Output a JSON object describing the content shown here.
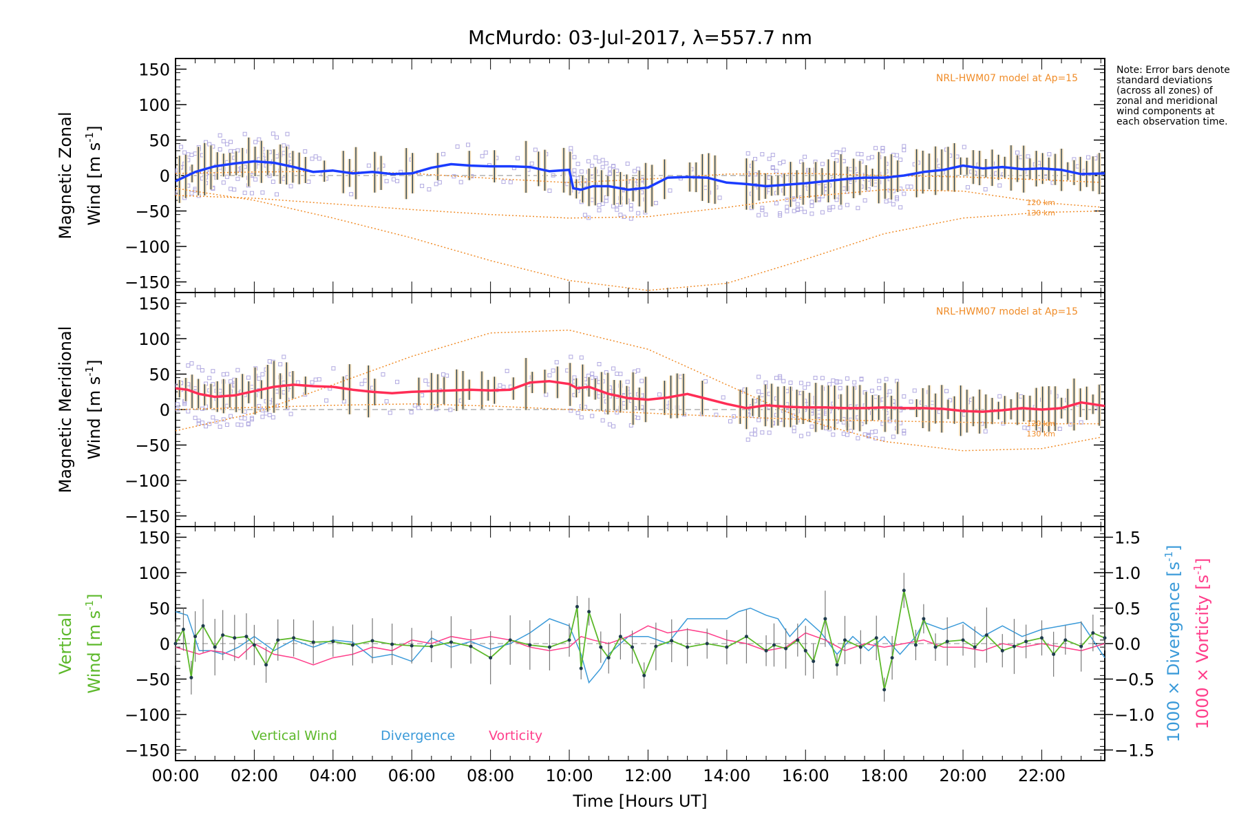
{
  "chart_data": [
    {
      "type": "line",
      "panel": "zonal",
      "title": "McMurdo: 03-Jul-2017, λ=557.7 nm",
      "ylabel_line1": "Magnetic Zonal",
      "ylabel_line2": "Wind [m s",
      "ylabel_exp": "-1",
      "ylabel_end": "]",
      "ylim": [
        -165,
        165
      ],
      "yticks": [
        -150,
        -100,
        -50,
        0,
        50,
        100,
        150
      ],
      "xlim": [
        0,
        23.6
      ],
      "model_label": "NRL-HWM07 model at Ap=15",
      "alt_labels": [
        "120 km",
        "130 km"
      ],
      "series": [
        {
          "name": "Zonal wind",
          "color": "#1a3cff",
          "x": [
            0.0,
            0.5,
            1.0,
            1.5,
            2.0,
            2.5,
            3.0,
            3.5,
            4.0,
            4.5,
            5.0,
            5.5,
            6.0,
            6.5,
            7.0,
            7.5,
            8.0,
            8.5,
            9.0,
            9.5,
            10.0,
            10.1,
            10.3,
            10.6,
            11.0,
            11.5,
            12.0,
            12.5,
            13.0,
            13.5,
            14.0,
            14.5,
            15.0,
            15.5,
            16.0,
            16.5,
            17.0,
            17.5,
            18.0,
            18.5,
            19.0,
            19.5,
            20.0,
            20.5,
            21.0,
            21.5,
            22.0,
            22.5,
            23.0,
            23.6
          ],
          "y": [
            -8,
            5,
            13,
            17,
            20,
            18,
            12,
            5,
            7,
            3,
            5,
            2,
            3,
            11,
            16,
            14,
            13,
            13,
            12,
            6,
            8,
            -18,
            -20,
            -15,
            -15,
            -20,
            -17,
            -3,
            -2,
            -3,
            -10,
            -12,
            -15,
            -13,
            -11,
            -8,
            -5,
            -3,
            -3,
            0,
            5,
            8,
            14,
            10,
            12,
            9,
            10,
            8,
            2,
            3
          ]
        },
        {
          "name": "Model 120 km",
          "color": "#f08c28",
          "x": [
            0,
            2,
            4,
            6,
            8,
            10,
            12,
            14,
            16,
            18,
            20,
            22,
            23.6
          ],
          "y": [
            -28,
            -32,
            -40,
            -48,
            -55,
            -60,
            -58,
            -45,
            -30,
            -20,
            -22,
            -38,
            -45
          ]
        },
        {
          "name": "Model 130 km",
          "color": "#f08c28",
          "x": [
            0,
            2,
            4,
            6,
            8,
            10,
            12,
            14,
            16,
            18,
            20,
            22,
            23.6
          ],
          "y": [
            -18,
            -35,
            -60,
            -88,
            -120,
            -148,
            -162,
            -152,
            -118,
            -82,
            -60,
            -52,
            -50
          ]
        },
        {
          "name": "Model upper",
          "color": "#f08c28",
          "x": [
            0,
            2,
            4,
            6,
            8,
            10,
            12,
            14,
            16,
            18,
            20,
            22,
            23.6
          ],
          "y": [
            3,
            5,
            6,
            3,
            -4,
            -10,
            -5,
            2,
            3,
            0,
            -2,
            -6,
            -10
          ]
        }
      ]
    },
    {
      "type": "line",
      "panel": "meridional",
      "ylabel_line1": "Magnetic Meridional",
      "ylabel_line2": "Wind [m s",
      "ylabel_exp": "-1",
      "ylabel_end": "]",
      "ylim": [
        -165,
        165
      ],
      "yticks": [
        -150,
        -100,
        -50,
        0,
        50,
        100,
        150
      ],
      "xlim": [
        0,
        23.6
      ],
      "model_label": "NRL-HWM07 model at Ap=15",
      "alt_labels": [
        "120 km",
        "130 km"
      ],
      "series": [
        {
          "name": "Meridional wind",
          "color": "#ff2d55",
          "x": [
            0.0,
            0.3,
            0.6,
            1.0,
            1.5,
            2.0,
            2.5,
            3.0,
            3.5,
            4.0,
            4.5,
            5.0,
            5.5,
            6.0,
            6.5,
            7.0,
            7.5,
            8.0,
            8.5,
            9.0,
            9.5,
            10.0,
            10.2,
            10.5,
            11.0,
            11.5,
            12.0,
            12.5,
            13.0,
            13.5,
            14.0,
            14.5,
            15.0,
            15.5,
            16.0,
            16.5,
            17.0,
            17.5,
            18.0,
            18.5,
            19.0,
            19.5,
            20.0,
            20.5,
            21.0,
            21.5,
            22.0,
            22.5,
            23.0,
            23.6
          ],
          "y": [
            30,
            28,
            22,
            18,
            20,
            26,
            32,
            35,
            33,
            32,
            28,
            25,
            23,
            25,
            26,
            27,
            28,
            27,
            28,
            38,
            40,
            36,
            30,
            32,
            22,
            16,
            14,
            17,
            22,
            15,
            8,
            2,
            6,
            4,
            3,
            3,
            2,
            2,
            3,
            2,
            2,
            1,
            -2,
            -3,
            -1,
            2,
            0,
            2,
            10,
            5
          ]
        },
        {
          "name": "Model 120 km",
          "color": "#f08c28",
          "x": [
            0,
            2,
            4,
            6,
            8,
            10,
            12,
            14,
            16,
            18,
            20,
            22,
            23.6
          ],
          "y": [
            0,
            3,
            6,
            8,
            5,
            0,
            -5,
            -10,
            -14,
            -16,
            -18,
            -20,
            -20
          ]
        },
        {
          "name": "Model 130 km",
          "color": "#f08c28",
          "x": [
            0,
            2,
            4,
            6,
            8,
            10,
            12,
            14,
            16,
            18,
            20,
            22,
            23.6
          ],
          "y": [
            -30,
            -5,
            35,
            75,
            108,
            112,
            85,
            35,
            -15,
            -45,
            -58,
            -55,
            -38
          ]
        }
      ]
    },
    {
      "type": "line",
      "panel": "vertical",
      "ylabel_line1": "Vertical",
      "ylabel_line2": "Wind [m s",
      "ylabel_exp": "-1",
      "ylabel_end": "]",
      "ylabel_color": "#5cb82a",
      "ylim": [
        -165,
        165
      ],
      "yticks": [
        -150,
        -100,
        -50,
        0,
        50,
        100,
        150
      ],
      "y2lim": [
        -1.65,
        1.65
      ],
      "y2ticks": [
        -1.5,
        -1.0,
        -0.5,
        0.0,
        0.5,
        1.0,
        1.5
      ],
      "y2label_div": "1000 × Divergence [s",
      "y2label_vor": "1000 × Vorticity [s",
      "y2label_exp": "-1",
      "y2label_end": "]",
      "xlabel": "Time [Hours UT]",
      "xlim": [
        0,
        23.6
      ],
      "xticks": [
        "00:00",
        "02:00",
        "04:00",
        "06:00",
        "08:00",
        "10:00",
        "12:00",
        "14:00",
        "16:00",
        "18:00",
        "20:00",
        "22:00"
      ],
      "legend": [
        "Vertical Wind",
        "Divergence",
        "Vorticity"
      ],
      "legend_colors": [
        "#5cb82a",
        "#3a9ad9",
        "#ff3d8a"
      ],
      "series": [
        {
          "name": "Vertical Wind",
          "color": "#5cb82a",
          "axis": "left",
          "x": [
            0.0,
            0.2,
            0.4,
            0.5,
            0.7,
            1.0,
            1.2,
            1.5,
            1.8,
            2.0,
            2.3,
            2.6,
            3.0,
            3.5,
            4.0,
            4.5,
            5.0,
            5.5,
            6.0,
            6.5,
            7.0,
            7.5,
            8.0,
            8.5,
            9.0,
            9.5,
            10.0,
            10.2,
            10.3,
            10.5,
            10.8,
            11.0,
            11.3,
            11.6,
            11.9,
            12.2,
            12.6,
            13.0,
            13.5,
            14.0,
            14.5,
            15.0,
            15.2,
            15.5,
            15.8,
            16.0,
            16.2,
            16.5,
            16.8,
            17.0,
            17.4,
            17.8,
            18.0,
            18.2,
            18.5,
            18.8,
            19.0,
            19.3,
            19.6,
            20.0,
            20.3,
            20.6,
            21.0,
            21.3,
            21.6,
            22.0,
            22.3,
            22.6,
            23.0,
            23.3,
            23.6
          ],
          "y": [
            0,
            20,
            -48,
            10,
            25,
            -5,
            12,
            8,
            10,
            -2,
            -30,
            5,
            8,
            2,
            3,
            -2,
            4,
            -1,
            -3,
            -4,
            2,
            -4,
            -20,
            5,
            -2,
            -5,
            5,
            52,
            -35,
            45,
            -5,
            -20,
            10,
            -5,
            -45,
            -4,
            4,
            -5,
            0,
            -5,
            10,
            -10,
            -2,
            -7,
            5,
            -10,
            -25,
            35,
            -30,
            5,
            -5,
            8,
            -65,
            -20,
            75,
            -2,
            35,
            -5,
            3,
            5,
            -5,
            12,
            -10,
            -4,
            3,
            8,
            -15,
            5,
            -4,
            15,
            8
          ]
        },
        {
          "name": "Divergence",
          "color": "#3a9ad9",
          "axis": "right",
          "x": [
            0.0,
            0.3,
            0.6,
            0.9,
            1.2,
            1.6,
            2.0,
            2.5,
            3.0,
            3.5,
            4.0,
            4.5,
            5.0,
            5.5,
            6.0,
            6.5,
            7.0,
            7.5,
            8.0,
            8.5,
            9.0,
            9.5,
            10.0,
            10.3,
            10.5,
            10.8,
            11.0,
            11.5,
            12.0,
            12.5,
            13.0,
            13.5,
            14.0,
            14.3,
            14.6,
            15.0,
            15.3,
            15.6,
            16.0,
            16.4,
            16.8,
            17.2,
            17.6,
            18.0,
            18.4,
            18.8,
            19.0,
            19.5,
            20.0,
            20.5,
            21.0,
            21.5,
            22.0,
            22.5,
            23.0,
            23.3,
            23.6
          ],
          "y": [
            0.45,
            0.4,
            -0.1,
            -0.1,
            -0.15,
            -0.05,
            0.1,
            -0.1,
            0.05,
            -0.05,
            0.05,
            0.02,
            -0.2,
            -0.15,
            -0.25,
            0.08,
            -0.05,
            0.03,
            -0.08,
            0.0,
            0.15,
            0.35,
            0.25,
            -0.15,
            -0.55,
            -0.35,
            -0.15,
            0.1,
            0.1,
            0.0,
            0.35,
            0.35,
            0.35,
            0.45,
            0.5,
            0.4,
            0.35,
            0.1,
            0.35,
            0.15,
            -0.15,
            0.1,
            -0.1,
            0.1,
            -0.15,
            0.1,
            0.3,
            0.2,
            0.3,
            0.1,
            0.25,
            0.1,
            0.2,
            0.25,
            0.3,
            0.05,
            -0.2
          ]
        },
        {
          "name": "Vorticity",
          "color": "#ff3d8a",
          "axis": "right",
          "x": [
            0.0,
            0.3,
            0.6,
            0.9,
            1.2,
            1.6,
            2.0,
            2.5,
            3.0,
            3.5,
            4.0,
            4.5,
            5.0,
            5.5,
            6.0,
            6.5,
            7.0,
            7.5,
            8.0,
            8.5,
            9.0,
            9.5,
            10.0,
            10.3,
            10.6,
            11.0,
            11.5,
            12.0,
            12.5,
            13.0,
            13.5,
            14.0,
            14.5,
            15.0,
            15.5,
            16.0,
            16.5,
            17.0,
            17.5,
            18.0,
            18.5,
            19.0,
            19.5,
            20.0,
            20.5,
            21.0,
            21.5,
            22.0,
            22.5,
            23.0,
            23.6
          ],
          "y": [
            -0.05,
            -0.1,
            -0.15,
            -0.1,
            -0.12,
            -0.2,
            0.0,
            -0.15,
            -0.2,
            -0.3,
            -0.2,
            -0.15,
            -0.05,
            -0.1,
            0.05,
            0.0,
            0.1,
            0.05,
            0.1,
            0.05,
            -0.05,
            -0.1,
            -0.05,
            0.1,
            0.05,
            0.0,
            0.1,
            0.25,
            0.15,
            0.2,
            0.15,
            0.05,
            0.0,
            -0.1,
            -0.05,
            0.15,
            0.05,
            -0.1,
            0.0,
            -0.05,
            0.0,
            0.05,
            -0.05,
            -0.05,
            -0.1,
            0.0,
            -0.05,
            0.0,
            -0.05,
            -0.1,
            0.0
          ]
        }
      ]
    }
  ],
  "note": "Note: Error bars denote standard deviations (across all zones) of zonal and meridional wind components at each observation time."
}
